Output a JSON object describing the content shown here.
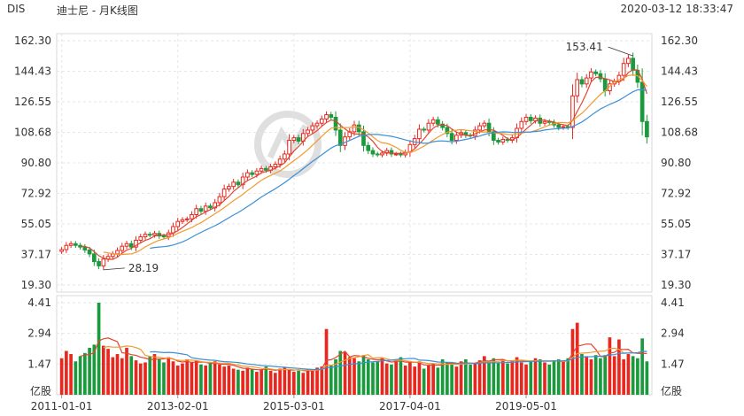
{
  "header": {
    "symbol": "DIS",
    "title": "迪士尼 - 月K线图",
    "datetime": "2020-03-12 18:33:47"
  },
  "colors": {
    "up": "#e8281f",
    "down": "#1a9a3c",
    "ma5": "#e2452e",
    "ma10": "#f29a2e",
    "ma20": "#3a8fd9",
    "grid": "#e6e6e6",
    "watermark": "#dcdcdc"
  },
  "chart_data": [
    {
      "type": "candlestick",
      "title": "",
      "y_ticks": [
        "162.30",
        "144.43",
        "126.55",
        "108.68",
        "90.80",
        "72.92",
        "55.05",
        "37.17",
        "19.30"
      ],
      "ylim": [
        19.3,
        162.3
      ],
      "x_ticks": [
        "2011-01-01",
        "2013-02-01",
        "2015-03-01",
        "2017-04-01",
        "2019-05-01"
      ],
      "annotations": [
        {
          "label": "153.41",
          "kind": "max"
        },
        {
          "label": "28.19",
          "kind": "min"
        }
      ],
      "start_month": "2011-01",
      "close": [
        40.0,
        42.5,
        43.5,
        42.5,
        41.5,
        39.8,
        37.5,
        33.0,
        30.5,
        34.5,
        36.0,
        37.5,
        39.5,
        42.0,
        43.5,
        41.5,
        45.5,
        47.5,
        49.0,
        48.5,
        49.5,
        48.0,
        47.5,
        49.8,
        53.5,
        56.5,
        57.5,
        58.0,
        60.5,
        64.0,
        62.5,
        65.5,
        64.5,
        67.5,
        71.0,
        75.5,
        77.0,
        79.5,
        78.0,
        82.5,
        85.0,
        84.0,
        86.0,
        87.5,
        86.5,
        88.5,
        90.0,
        93.0,
        96.0,
        104.0,
        105.5,
        103.5,
        108.0,
        110.0,
        112.5,
        114.0,
        116.5,
        119.0,
        117.5,
        110.0,
        101.0,
        106.0,
        109.0,
        113.0,
        109.0,
        101.0,
        98.0,
        96.0,
        95.5,
        96.5,
        98.0,
        96.0,
        96.0,
        95.5,
        97.0,
        101.5,
        105.0,
        110.5,
        110.0,
        114.0,
        116.0,
        113.5,
        111.5,
        108.0,
        104.0,
        107.0,
        108.5,
        107.0,
        106.5,
        110.0,
        112.5,
        114.0,
        109.0,
        104.0,
        103.0,
        104.5,
        104.0,
        105.5,
        111.0,
        115.0,
        117.5,
        115.5,
        117.0,
        114.0,
        115.0,
        114.5,
        113.0,
        111.5,
        112.0,
        111.5,
        130.0,
        139.5,
        137.0,
        140.5,
        144.0,
        143.0,
        140.0,
        133.0,
        137.0,
        138.5,
        142.0,
        149.0,
        152.0,
        145.0,
        138.0,
        115.0,
        106.0
      ],
      "volume": [
        1.75,
        2.1,
        1.95,
        1.6,
        1.85,
        2.0,
        2.25,
        2.4,
        4.41,
        2.35,
        2.2,
        1.8,
        1.95,
        1.75,
        2.25,
        1.85,
        1.65,
        1.5,
        1.55,
        1.85,
        1.95,
        1.7,
        1.55,
        1.8,
        1.6,
        1.4,
        1.5,
        1.7,
        1.55,
        1.65,
        1.45,
        1.4,
        1.5,
        1.6,
        1.45,
        1.35,
        1.4,
        1.25,
        1.2,
        1.15,
        1.3,
        1.25,
        1.1,
        1.2,
        1.35,
        1.15,
        1.05,
        1.25,
        1.3,
        1.2,
        1.1,
        1.15,
        1.05,
        1.25,
        1.2,
        1.3,
        1.35,
        3.15,
        1.4,
        1.7,
        2.1,
        2.05,
        1.8,
        1.75,
        1.6,
        1.9,
        1.7,
        1.55,
        1.6,
        1.75,
        1.5,
        1.45,
        1.65,
        1.8,
        1.4,
        1.55,
        1.35,
        1.6,
        1.25,
        1.4,
        1.5,
        1.3,
        1.7,
        1.55,
        1.45,
        1.35,
        1.6,
        1.7,
        1.45,
        1.5,
        1.65,
        1.85,
        1.6,
        1.75,
        1.55,
        1.7,
        1.5,
        1.65,
        1.8,
        1.55,
        1.45,
        1.6,
        1.75,
        1.7,
        1.55,
        1.45,
        1.65,
        1.7,
        1.6,
        1.75,
        3.15,
        3.45,
        1.95,
        1.85,
        1.7,
        1.9,
        1.75,
        1.9,
        2.75,
        1.85,
        2.65,
        1.7,
        1.95,
        1.85,
        1.75,
        2.7,
        1.6
      ],
      "volume_y_ticks": [
        "4.41",
        "2.94",
        "1.47"
      ],
      "volume_unit": "亿股"
    }
  ]
}
